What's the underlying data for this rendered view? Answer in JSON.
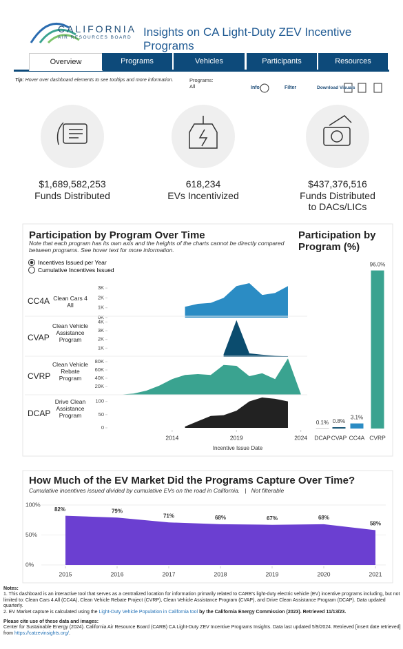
{
  "header": {
    "logo_name": "CALIFORNIA",
    "logo_sub": "AIR RESOURCES BOARD",
    "title": "Insights on CA Light-Duty ZEV Incentive Programs"
  },
  "tabs": [
    "Overview",
    "Programs",
    "Vehicles",
    "Participants",
    "Resources"
  ],
  "toolbar": {
    "tip_label": "Tip:",
    "tip": "Hover over dashboard elements to see tooltips and more information.",
    "programs_label": "Programs:",
    "programs_value": "All",
    "info": "Info",
    "filter": "Filter",
    "download": "Download Visuals"
  },
  "kpis": [
    {
      "value": "$1,689,582,253",
      "label": "Funds Distributed"
    },
    {
      "value": "618,234",
      "label": "EVs Incentivized"
    },
    {
      "value": "$437,376,516",
      "label": "Funds Distributed to DACs/LICs"
    }
  ],
  "chart_data": [
    {
      "type": "area",
      "title": "Participation by Program Over Time",
      "subtitle": "Note that each program has its own axis and the heights of the charts cannot be directly compared between programs. See hover text for more information.",
      "options": [
        "Incentives Issued per Year",
        "Cumulative Incentives Issued"
      ],
      "xlabel": "Incentive Issue Date",
      "xlim": [
        2009,
        2024.5
      ],
      "xticks": [
        2014,
        2019,
        2024
      ],
      "panels": [
        {
          "code": "CC4A",
          "name": "Clean Cars 4 All",
          "color": "#2b8cc4",
          "ylim": [
            0,
            3500
          ],
          "yticks": [
            {
              "value": 0,
              "label": "0K"
            },
            {
              "value": 1000,
              "label": "1K"
            },
            {
              "value": 2000,
              "label": "2K"
            },
            {
              "value": 3000,
              "label": "3K"
            }
          ],
          "x": [
            2015,
            2016,
            2017,
            2018,
            2019,
            2020,
            2021,
            2022,
            2023
          ],
          "values": [
            1100,
            1400,
            1500,
            2000,
            3200,
            3500,
            2300,
            2500,
            3200
          ]
        },
        {
          "code": "CVAP",
          "name": "Clean Vehicle Assistance Program",
          "color": "#0b4c6e",
          "ylim": [
            0,
            4500
          ],
          "yticks": [
            {
              "value": 1000,
              "label": "1K"
            },
            {
              "value": 2000,
              "label": "2K"
            },
            {
              "value": 3000,
              "label": "3K"
            },
            {
              "value": 4000,
              "label": "4K"
            }
          ],
          "x": [
            2018,
            2019,
            2020,
            2021,
            2022,
            2023
          ],
          "values": [
            300,
            4200,
            400,
            250,
            150,
            100
          ]
        },
        {
          "code": "CVRP",
          "name": "Clean Vehicle Rebate Program",
          "color": "#3aa390",
          "ylim": [
            0,
            90000
          ],
          "yticks": [
            {
              "value": 20000,
              "label": "20K"
            },
            {
              "value": 40000,
              "label": "40K"
            },
            {
              "value": 60000,
              "label": "60K"
            },
            {
              "value": 80000,
              "label": "80K"
            }
          ],
          "x": [
            2010,
            2011,
            2012,
            2013,
            2014,
            2015,
            2016,
            2017,
            2018,
            2019,
            2020,
            2021,
            2022,
            2023,
            2024
          ],
          "values": [
            500,
            3000,
            10000,
            22000,
            38000,
            48000,
            50000,
            48000,
            72000,
            70000,
            45000,
            52000,
            38000,
            88000,
            2000
          ]
        },
        {
          "code": "DCAP",
          "name": "Drive Clean Assistance Program",
          "color": "#222222",
          "ylim": [
            0,
            120
          ],
          "yticks": [
            0,
            50,
            100
          ],
          "x": [
            2015,
            2016,
            2017,
            2018,
            2019,
            2020,
            2021,
            2022,
            2023
          ],
          "values": [
            5,
            25,
            45,
            48,
            65,
            100,
            115,
            110,
            100
          ]
        }
      ]
    },
    {
      "type": "bar",
      "title": "Participation by Program (%)",
      "categories": [
        "DCAP",
        "CVAP",
        "CC4A",
        "CVRP"
      ],
      "values": [
        0.1,
        0.8,
        3.1,
        96.0
      ],
      "value_labels": [
        "0.1%",
        "0.8%",
        "3.1%",
        "96.0%"
      ],
      "colors": [
        "#222222",
        "#0b4c6e",
        "#2b8cc4",
        "#3aa390"
      ],
      "ylim": [
        0,
        100
      ]
    },
    {
      "type": "area",
      "title": "How Much of the EV Market Did the Programs Capture Over Time?",
      "subtitle": "Cumulative incentives issued divided by cumulative EVs on the road in California.",
      "separator": "|",
      "note": "Not filterable",
      "x": [
        2015,
        2016,
        2017,
        2018,
        2019,
        2020,
        2021
      ],
      "values": [
        82,
        79,
        71,
        68,
        67,
        68,
        58
      ],
      "value_labels": [
        "82%",
        "79%",
        "71%",
        "68%",
        "67%",
        "68%",
        "58%"
      ],
      "color": "#6b3fd1",
      "xlim": [
        2015,
        2021
      ],
      "xticks": [
        2015,
        2016,
        2017,
        2018,
        2019,
        2020,
        2021
      ],
      "ylim": [
        0,
        100
      ],
      "yticks": [
        {
          "value": 0,
          "label": "0%"
        },
        {
          "value": 50,
          "label": "50%"
        },
        {
          "value": 100,
          "label": "100%"
        }
      ],
      "grid": true
    }
  ],
  "notes": {
    "heading": "Notes:",
    "note1": "1. This dashboard is an interactive tool that serves as a centralized location for information primarily related to CARB's light-duty electric vehicle (EV) incentive programs including, but not limited to: Clean Cars 4 All (CC4A), Clean Vehicle Rebate Project (CVRP), Clean Vehicle Assistance Program (CVAP), and Drive Clean Assistance Program (DCAP). Data updated quarterly.",
    "note2_pre": "2. EV Market capture is calculated using the",
    "note2_link": "Light-Duty Vehicle Population in California tool",
    "note2_post": "by the California Energy Commission (2023). Retrieved 11/13/23.",
    "cite_heading": "Please cite use of these data and images:",
    "cite": "Center for Sustainable Energy (2024). California Air Resource Board (CARB) CA Light-Duty ZEV Incentive Programs Insights. Data last updated 5/9/2024. Retrieved [insert date retrieved] from",
    "cite_link": "https://catzevinsights.org/",
    "cite_end": "."
  }
}
